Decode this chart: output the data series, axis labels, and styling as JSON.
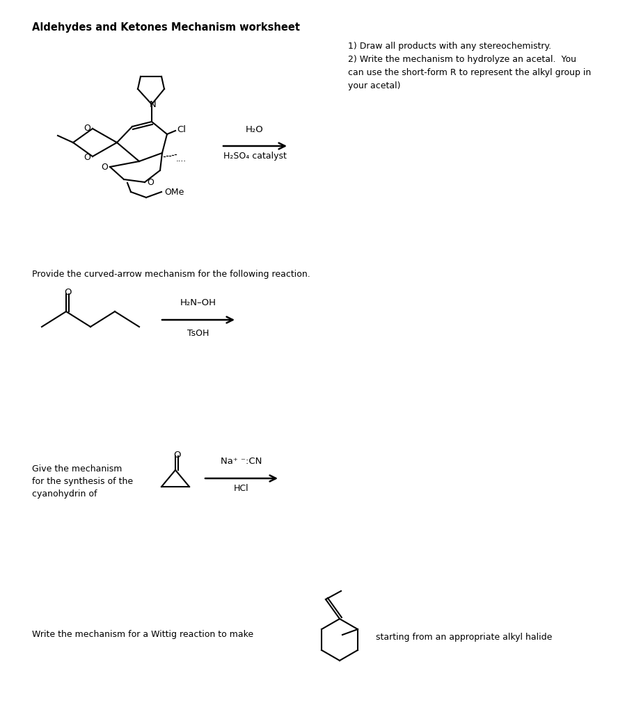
{
  "title": "Aldehydes and Ketones Mechanism worksheet",
  "background": "#ffffff",
  "text_color": "#000000",
  "section1": {
    "instructions": "1) Draw all products with any stereochemistry.\n2) Write the mechanism to hydrolyze an acetal.  You\ncan use the short-form R to represent the alkyl group in\nyour acetal)",
    "reagents_above": "H₂O",
    "reagents_below": "H₂SO₄ catalyst"
  },
  "section2": {
    "prompt": "Provide the curved-arrow mechanism for the following reaction.",
    "reagents_above": "H₂N–OH",
    "reagents_below": "TsOH"
  },
  "section3": {
    "prompt_line1": "Give the mechanism",
    "prompt_line2": "for the synthesis of the",
    "prompt_line3": "cyanohydrin of",
    "reagents_above": "Na⁺ ⁻:CN",
    "reagents_below": "HCl"
  },
  "section4": {
    "prompt": "Write the mechanism for a Wittig reaction to make",
    "suffix": "starting from an appropriate alkyl halide"
  }
}
